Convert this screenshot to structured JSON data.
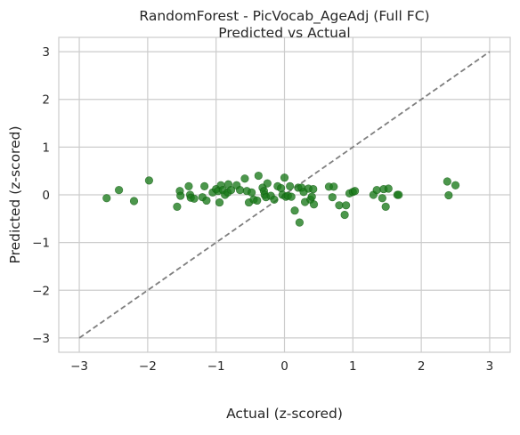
{
  "chart_data": {
    "type": "scatter",
    "title": "RandomForest - PicVocab_AgeAdj (Full FC)",
    "subtitle": "Predicted vs Actual",
    "xlabel": "Actual (z-scored)",
    "ylabel": "Predicted (z-scored)",
    "xlim": [
      -3.3,
      3.3
    ],
    "ylim": [
      -3.3,
      3.3
    ],
    "xticks": [
      -3,
      -2,
      -1,
      0,
      1,
      2,
      3
    ],
    "yticks": [
      -3,
      -2,
      -1,
      0,
      1,
      2,
      3
    ],
    "xtick_labels": [
      "−3",
      "−2",
      "−1",
      "0",
      "1",
      "2",
      "3"
    ],
    "ytick_labels": [
      "−3",
      "−2",
      "−1",
      "0",
      "1",
      "2",
      "3"
    ],
    "grid": true,
    "point_color": "#1a7a1a",
    "reference_line": {
      "from": [
        -3,
        -3
      ],
      "to": [
        3,
        3
      ],
      "color": "#7f7f7f",
      "style": "dashed"
    },
    "points": [
      [
        -2.6,
        -0.07
      ],
      [
        -2.42,
        0.1
      ],
      [
        -2.2,
        -0.13
      ],
      [
        -1.98,
        0.3
      ],
      [
        -1.57,
        -0.25
      ],
      [
        -1.53,
        0.08
      ],
      [
        -1.52,
        -0.02
      ],
      [
        -1.4,
        0.18
      ],
      [
        -1.38,
        0.0
      ],
      [
        -1.37,
        -0.06
      ],
      [
        -1.32,
        -0.08
      ],
      [
        -1.2,
        -0.05
      ],
      [
        -1.17,
        0.18
      ],
      [
        -1.14,
        -0.12
      ],
      [
        -1.05,
        0.05
      ],
      [
        -1.0,
        0.12
      ],
      [
        -0.97,
        0.08
      ],
      [
        -0.95,
        -0.16
      ],
      [
        -0.93,
        0.2
      ],
      [
        -0.9,
        0.1
      ],
      [
        -0.87,
        0.0
      ],
      [
        -0.83,
        0.05
      ],
      [
        -0.82,
        0.22
      ],
      [
        -0.78,
        0.1
      ],
      [
        -0.7,
        0.2
      ],
      [
        -0.65,
        0.1
      ],
      [
        -0.58,
        0.34
      ],
      [
        -0.55,
        0.08
      ],
      [
        -0.52,
        -0.16
      ],
      [
        -0.48,
        0.05
      ],
      [
        -0.45,
        -0.1
      ],
      [
        -0.4,
        -0.12
      ],
      [
        -0.38,
        0.4
      ],
      [
        -0.32,
        0.15
      ],
      [
        -0.3,
        0.08
      ],
      [
        -0.29,
        0.0
      ],
      [
        -0.27,
        -0.05
      ],
      [
        -0.25,
        0.24
      ],
      [
        -0.2,
        -0.02
      ],
      [
        -0.15,
        -0.1
      ],
      [
        -0.1,
        0.18
      ],
      [
        -0.05,
        0.14
      ],
      [
        -0.03,
        0.0
      ],
      [
        0.0,
        0.36
      ],
      [
        0.02,
        -0.04
      ],
      [
        0.05,
        -0.02
      ],
      [
        0.08,
        0.18
      ],
      [
        0.1,
        -0.04
      ],
      [
        0.15,
        -0.33
      ],
      [
        0.2,
        0.15
      ],
      [
        0.22,
        -0.58
      ],
      [
        0.25,
        0.15
      ],
      [
        0.28,
        0.06
      ],
      [
        0.3,
        -0.15
      ],
      [
        0.35,
        0.13
      ],
      [
        0.38,
        -0.1
      ],
      [
        0.4,
        -0.04
      ],
      [
        0.42,
        0.12
      ],
      [
        0.43,
        -0.2
      ],
      [
        0.65,
        0.17
      ],
      [
        0.7,
        -0.05
      ],
      [
        0.72,
        0.17
      ],
      [
        0.8,
        -0.22
      ],
      [
        0.88,
        -0.42
      ],
      [
        0.9,
        -0.22
      ],
      [
        0.95,
        0.03
      ],
      [
        1.0,
        0.06
      ],
      [
        1.03,
        0.08
      ],
      [
        1.3,
        0.0
      ],
      [
        1.35,
        0.1
      ],
      [
        1.43,
        -0.07
      ],
      [
        1.45,
        0.12
      ],
      [
        1.48,
        -0.25
      ],
      [
        1.52,
        0.13
      ],
      [
        1.65,
        0.0
      ],
      [
        1.67,
        0.0
      ],
      [
        2.38,
        0.28
      ],
      [
        2.4,
        -0.01
      ],
      [
        2.5,
        0.2
      ]
    ]
  }
}
